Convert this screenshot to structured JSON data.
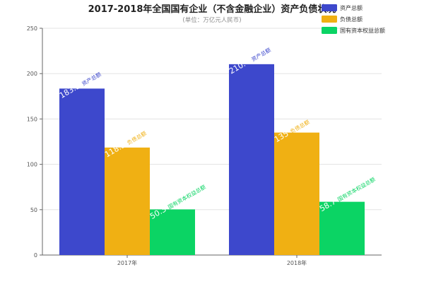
{
  "chart_data": {
    "type": "bar",
    "title": "2017-2018年全国国有企业（不含金融企业）资产负债状况",
    "subtitle": "(单位：万亿元人民币)",
    "xlabel": "",
    "ylabel": "",
    "categories": [
      "2017年",
      "2018年"
    ],
    "ylim": [
      0,
      250
    ],
    "yticks": [
      0,
      50,
      100,
      150,
      200,
      250
    ],
    "grid": true,
    "legend_position": "top-right",
    "series": [
      {
        "name": "资产总额",
        "color": "#3d48cc",
        "values": [
          183.5,
          210.4
        ],
        "labels": [
          "183.5",
          "210.4"
        ]
      },
      {
        "name": "负债总额",
        "color": "#f0b013",
        "values": [
          118.5,
          135
        ],
        "labels": [
          "118.5",
          "135"
        ]
      },
      {
        "name": "国有资本权益总额",
        "color": "#0bd464",
        "values": [
          50.3,
          58.7
        ],
        "labels": [
          "50.3",
          "58.7"
        ]
      }
    ]
  }
}
